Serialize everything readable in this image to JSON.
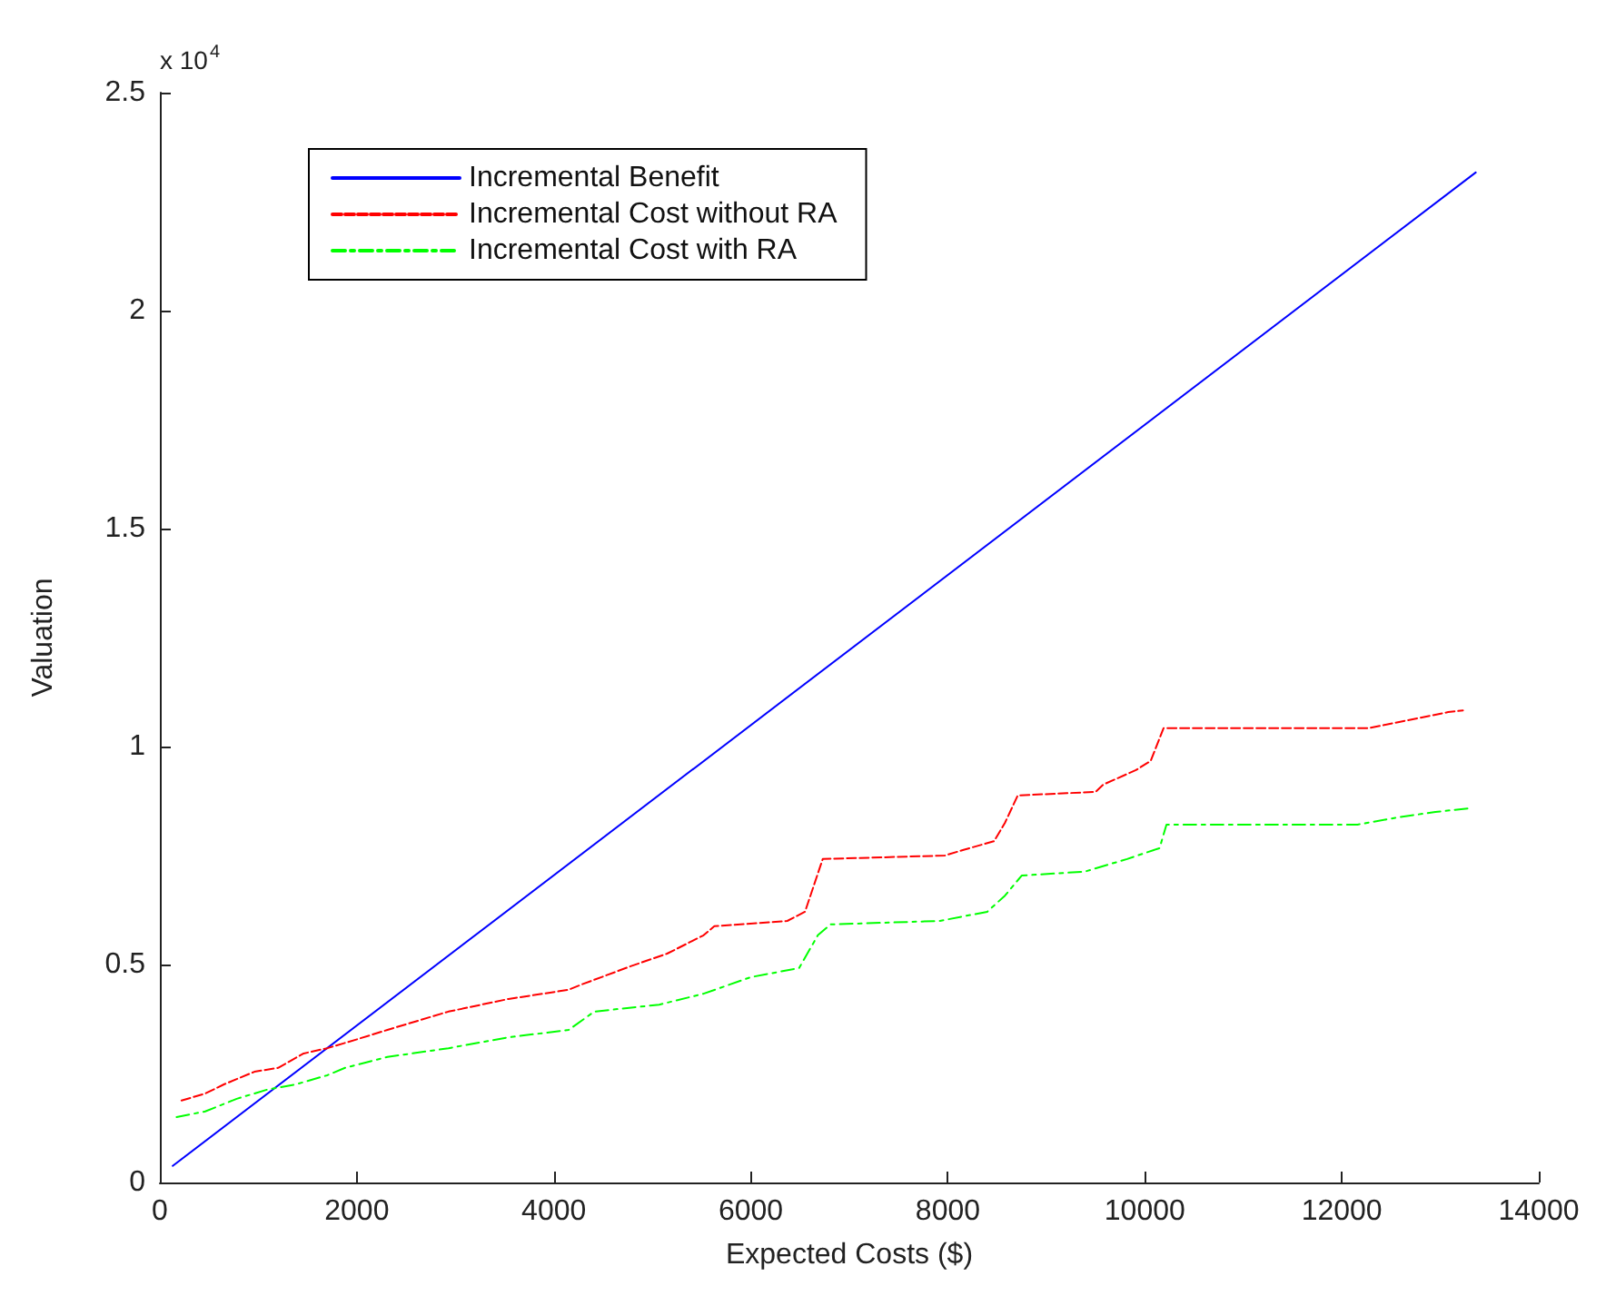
{
  "chart_data": {
    "type": "line",
    "xlabel": "Expected Costs ($)",
    "ylabel": "Valuation",
    "annotations": [
      "x 10$^{4}$"
    ],
    "xlim": [
      0,
      14000
    ],
    "xticks": [
      0,
      2000,
      4000,
      6000,
      8000,
      10000,
      12000,
      14000
    ],
    "ylim": [
      0,
      2.5
    ],
    "yticks": [
      0,
      0.5,
      1,
      1.5,
      2,
      2.5
    ],
    "grid": false,
    "legend": "top left",
    "marker": "none",
    "series": [
      {
        "name": "Incremental Benefit",
        "color": "#0000ff",
        "line_style": "solid",
        "x": [
          130,
          13360
        ],
        "values": [
          0.038,
          2.317
        ]
      },
      {
        "name": "Incremental Cost without RA",
        "color": "#ff0000",
        "line_style": "dashed",
        "x": [
          220,
          460,
          650,
          960,
          1200,
          1460,
          1700,
          2010,
          2310,
          2620,
          2930,
          3540,
          4150,
          4280,
          4780,
          5150,
          5520,
          5630,
          6370,
          6550,
          6730,
          7970,
          8160,
          8470,
          8580,
          8710,
          9500,
          9580,
          9910,
          10060,
          10190,
          12270,
          12530,
          13080,
          13230
        ],
        "values": [
          0.188,
          0.204,
          0.225,
          0.254,
          0.263,
          0.296,
          0.308,
          0.329,
          0.35,
          0.371,
          0.392,
          0.421,
          0.442,
          0.454,
          0.496,
          0.525,
          0.567,
          0.588,
          0.6,
          0.621,
          0.742,
          0.75,
          0.763,
          0.783,
          0.825,
          0.888,
          0.896,
          0.913,
          0.946,
          0.967,
          1.042,
          1.042,
          1.054,
          1.079,
          1.083
        ]
      },
      {
        "name": "Incremental Cost with RA",
        "color": "#00ff00",
        "line_style": "dashdot",
        "x": [
          170,
          460,
          780,
          1090,
          1380,
          1700,
          1880,
          2310,
          2930,
          3540,
          4150,
          4410,
          5070,
          5520,
          6000,
          6490,
          6680,
          6810,
          7920,
          8400,
          8580,
          8750,
          9390,
          9820,
          10150,
          10220,
          12160,
          12580,
          12950,
          13280
        ],
        "values": [
          0.15,
          0.163,
          0.192,
          0.213,
          0.225,
          0.246,
          0.263,
          0.288,
          0.308,
          0.333,
          0.35,
          0.392,
          0.408,
          0.433,
          0.471,
          0.492,
          0.567,
          0.592,
          0.6,
          0.621,
          0.658,
          0.704,
          0.713,
          0.742,
          0.767,
          0.821,
          0.821,
          0.838,
          0.85,
          0.858
        ]
      }
    ]
  }
}
